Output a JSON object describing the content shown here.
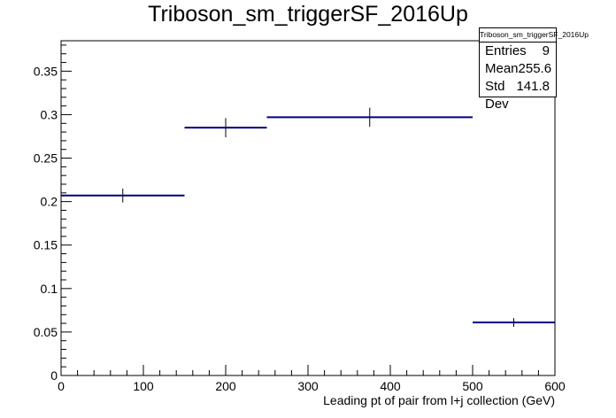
{
  "chart_data": {
    "type": "histogram",
    "title": "Triboson_sm_triggerSF_2016Up",
    "xlabel": "Leading pt of pair from l+j collection (GeV)",
    "ylabel": "",
    "xlim": [
      0,
      600
    ],
    "ylim": [
      0,
      0.385
    ],
    "x_ticks": [
      0,
      100,
      200,
      300,
      400,
      500,
      600
    ],
    "y_ticks": [
      0,
      0.05,
      0.1,
      0.15,
      0.2,
      0.25,
      0.3,
      0.35
    ],
    "x_tick_labels": [
      "0",
      "100",
      "200",
      "300",
      "400",
      "500",
      "600"
    ],
    "y_tick_labels": [
      "0",
      "0.05",
      "0.1",
      "0.15",
      "0.2",
      "0.25",
      "0.3",
      "0.35"
    ],
    "bins": [
      {
        "x_low": 0,
        "x_high": 150,
        "value": 0.207,
        "error": 0.008
      },
      {
        "x_low": 150,
        "x_high": 250,
        "value": 0.285,
        "error": 0.011
      },
      {
        "x_low": 250,
        "x_high": 500,
        "value": 0.297,
        "error": 0.011
      },
      {
        "x_low": 500,
        "x_high": 600,
        "value": 0.061,
        "error": 0.005
      }
    ],
    "line_color": "#000080",
    "error_color": "#000000"
  },
  "stats": {
    "title": "Triboson_sm_triggerSF_2016Up",
    "rows": [
      {
        "label": "Entries",
        "value": "9"
      },
      {
        "label": "Mean",
        "value": "255.6"
      },
      {
        "label": "Std Dev",
        "value": "141.8"
      }
    ]
  }
}
